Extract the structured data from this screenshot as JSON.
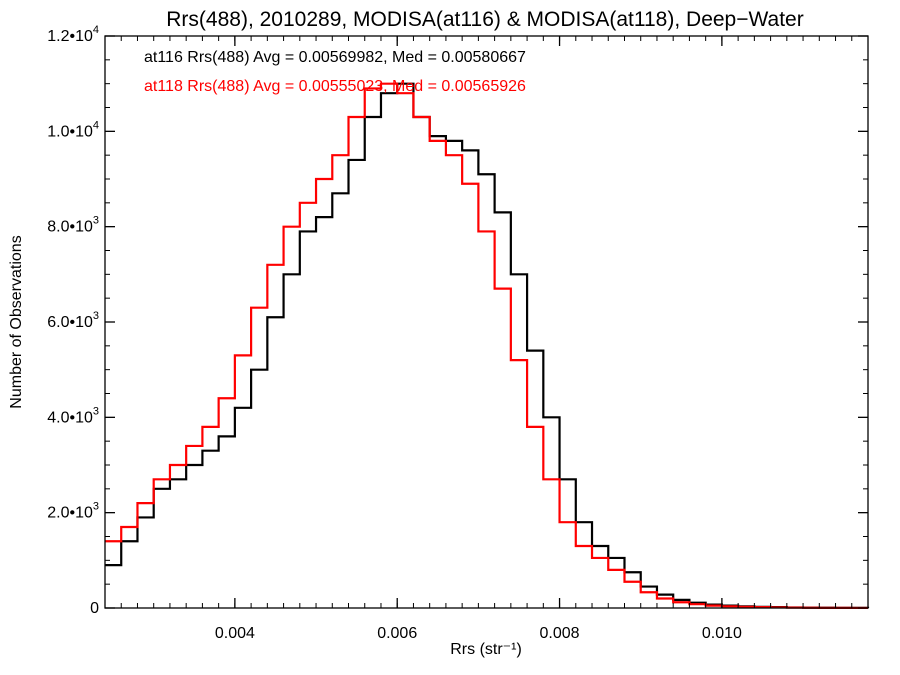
{
  "chart_data": {
    "type": "line",
    "title": "Rrs(488), 2010289, MODISA(at116) & MODISA(at118), Deep−Water",
    "xlabel": "Rrs (str⁻¹)",
    "ylabel": "Number of Observations",
    "xlim": [
      0.0024,
      0.0118
    ],
    "ylim": [
      0,
      12000
    ],
    "x_ticks": [
      0.004,
      0.006,
      0.008,
      0.01
    ],
    "x_tick_labels": [
      "0.004",
      "0.006",
      "0.008",
      "0.010"
    ],
    "y_ticks": [
      {
        "value": 0,
        "mantissa": "0",
        "exponent": ""
      },
      {
        "value": 2000,
        "mantissa": "2.0•10",
        "exponent": "3"
      },
      {
        "value": 4000,
        "mantissa": "4.0•10",
        "exponent": "3"
      },
      {
        "value": 6000,
        "mantissa": "6.0•10",
        "exponent": "3"
      },
      {
        "value": 8000,
        "mantissa": "8.0•10",
        "exponent": "3"
      },
      {
        "value": 10000,
        "mantissa": "1.0•10",
        "exponent": "4"
      },
      {
        "value": 12000,
        "mantissa": "1.2•10",
        "exponent": "4"
      }
    ],
    "grid": false,
    "legend_position": "top-left",
    "series": [
      {
        "name": "at116",
        "label": "at116 Rrs(488) Avg = 0.00569982, Med = 0.00580667",
        "color": "#000000",
        "x": [
          0.0024,
          0.0026,
          0.0028,
          0.003,
          0.0032,
          0.0034,
          0.0036,
          0.0038,
          0.004,
          0.0042,
          0.0044,
          0.0046,
          0.0048,
          0.005,
          0.0052,
          0.0054,
          0.0056,
          0.0058,
          0.006,
          0.0062,
          0.0064,
          0.0066,
          0.0068,
          0.007,
          0.0072,
          0.0074,
          0.0076,
          0.0078,
          0.008,
          0.0082,
          0.0084,
          0.0086,
          0.0088,
          0.009,
          0.0092,
          0.0094,
          0.0096,
          0.0098,
          0.01,
          0.0102,
          0.0104,
          0.0106,
          0.0108,
          0.011,
          0.0112,
          0.0114,
          0.0116,
          0.0118
        ],
        "y": [
          900,
          1400,
          1900,
          2500,
          2700,
          3000,
          3300,
          3600,
          4200,
          5000,
          6100,
          7000,
          7900,
          8200,
          8700,
          9400,
          10300,
          10800,
          11000,
          10300,
          9900,
          9800,
          9600,
          9100,
          8300,
          7000,
          5400,
          4000,
          2700,
          1800,
          1300,
          1050,
          750,
          450,
          280,
          170,
          110,
          70,
          50,
          35,
          25,
          18,
          12,
          8,
          5,
          3,
          2,
          1
        ]
      },
      {
        "name": "at118",
        "label": "at118 Rrs(488) Avg = 0.00555023, Med = 0.00565926",
        "color": "#ff0000",
        "x": [
          0.0024,
          0.0026,
          0.0028,
          0.003,
          0.0032,
          0.0034,
          0.0036,
          0.0038,
          0.004,
          0.0042,
          0.0044,
          0.0046,
          0.0048,
          0.005,
          0.0052,
          0.0054,
          0.0056,
          0.0058,
          0.006,
          0.0062,
          0.0064,
          0.0066,
          0.0068,
          0.007,
          0.0072,
          0.0074,
          0.0076,
          0.0078,
          0.008,
          0.0082,
          0.0084,
          0.0086,
          0.0088,
          0.009,
          0.0092,
          0.0094,
          0.0096,
          0.0098,
          0.01,
          0.0102,
          0.0104,
          0.0106,
          0.0108,
          0.011,
          0.0112,
          0.0114,
          0.0116,
          0.0118
        ],
        "y": [
          1400,
          1700,
          2200,
          2700,
          3000,
          3400,
          3800,
          4400,
          5300,
          6300,
          7200,
          8000,
          8500,
          9000,
          9500,
          10300,
          10900,
          11000,
          10800,
          10300,
          9800,
          9500,
          8900,
          7900,
          6700,
          5200,
          3800,
          2700,
          1800,
          1300,
          1050,
          800,
          550,
          330,
          200,
          120,
          80,
          50,
          35,
          25,
          18,
          12,
          8,
          5,
          3,
          2,
          1,
          1
        ]
      }
    ]
  }
}
